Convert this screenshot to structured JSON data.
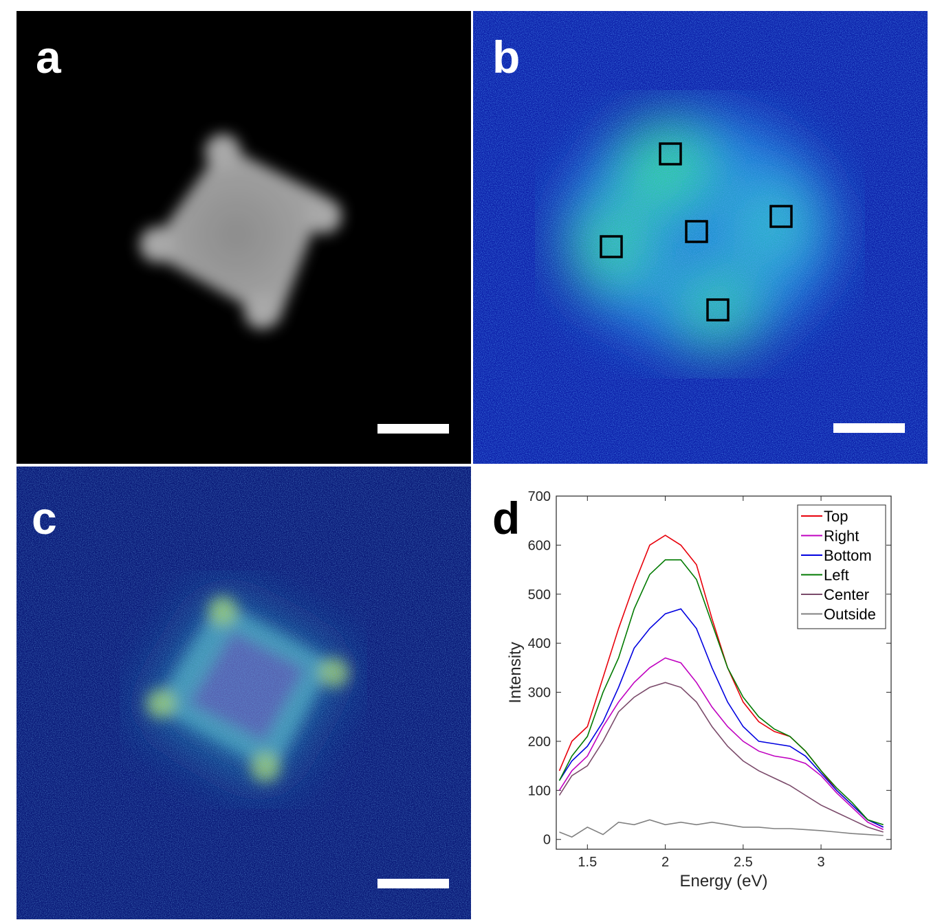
{
  "panels": {
    "a": {
      "label": "a"
    },
    "b": {
      "label": "b"
    },
    "c": {
      "label": "c"
    },
    "d": {
      "label": "d"
    }
  },
  "colors": {
    "top": "#e8000b",
    "right": "#c000c0",
    "bottom": "#0000e0",
    "left": "#007a00",
    "center": "#7a4a6a",
    "outside": "#808080"
  },
  "chart_data": {
    "type": "line",
    "title": "",
    "xlabel": "Energy (eV)",
    "ylabel": "Intensity",
    "xlim": [
      1.3,
      3.45
    ],
    "ylim": [
      -20,
      700
    ],
    "xticks": [
      1.5,
      2,
      2.5,
      3
    ],
    "yticks": [
      0,
      100,
      200,
      300,
      400,
      500,
      600,
      700
    ],
    "grid": false,
    "legend": "top-right",
    "series": [
      {
        "name": "Top",
        "color": "#e8000b",
        "x": [
          1.32,
          1.4,
          1.5,
          1.6,
          1.7,
          1.8,
          1.9,
          2.0,
          2.1,
          2.2,
          2.3,
          2.4,
          2.5,
          2.6,
          2.7,
          2.8,
          2.9,
          3.0,
          3.1,
          3.2,
          3.3,
          3.4
        ],
        "values": [
          140,
          200,
          230,
          330,
          430,
          520,
          600,
          620,
          600,
          560,
          450,
          350,
          280,
          240,
          220,
          210,
          180,
          140,
          100,
          70,
          40,
          25
        ]
      },
      {
        "name": "Right",
        "color": "#c000c0",
        "x": [
          1.32,
          1.4,
          1.5,
          1.6,
          1.7,
          1.8,
          1.9,
          2.0,
          2.1,
          2.2,
          2.3,
          2.4,
          2.5,
          2.6,
          2.7,
          2.8,
          2.9,
          3.0,
          3.1,
          3.2,
          3.3,
          3.4
        ],
        "values": [
          100,
          140,
          170,
          230,
          280,
          320,
          350,
          370,
          360,
          320,
          270,
          230,
          200,
          180,
          170,
          165,
          155,
          130,
          95,
          65,
          35,
          20
        ]
      },
      {
        "name": "Bottom",
        "color": "#0000e0",
        "x": [
          1.32,
          1.4,
          1.5,
          1.6,
          1.7,
          1.8,
          1.9,
          2.0,
          2.1,
          2.2,
          2.3,
          2.4,
          2.5,
          2.6,
          2.7,
          2.8,
          2.9,
          3.0,
          3.1,
          3.2,
          3.3,
          3.4
        ],
        "values": [
          120,
          160,
          190,
          240,
          310,
          390,
          430,
          460,
          470,
          430,
          350,
          280,
          230,
          200,
          195,
          190,
          170,
          135,
          100,
          70,
          40,
          25
        ]
      },
      {
        "name": "Left",
        "color": "#007a00",
        "x": [
          1.32,
          1.4,
          1.5,
          1.6,
          1.7,
          1.8,
          1.9,
          2.0,
          2.1,
          2.2,
          2.3,
          2.4,
          2.5,
          2.6,
          2.7,
          2.8,
          2.9,
          3.0,
          3.1,
          3.2,
          3.3,
          3.4
        ],
        "values": [
          120,
          170,
          210,
          300,
          370,
          470,
          540,
          570,
          570,
          530,
          440,
          350,
          290,
          250,
          225,
          210,
          180,
          140,
          105,
          75,
          40,
          30
        ]
      },
      {
        "name": "Center",
        "color": "#7a4a6a",
        "x": [
          1.32,
          1.4,
          1.5,
          1.6,
          1.7,
          1.8,
          1.9,
          2.0,
          2.1,
          2.2,
          2.3,
          2.4,
          2.5,
          2.6,
          2.7,
          2.8,
          2.9,
          3.0,
          3.1,
          3.2,
          3.3,
          3.4
        ],
        "values": [
          90,
          130,
          150,
          200,
          260,
          290,
          310,
          320,
          310,
          280,
          230,
          190,
          160,
          140,
          125,
          110,
          90,
          70,
          55,
          40,
          25,
          15
        ]
      },
      {
        "name": "Outside",
        "color": "#808080",
        "x": [
          1.32,
          1.4,
          1.5,
          1.6,
          1.7,
          1.8,
          1.9,
          2.0,
          2.1,
          2.2,
          2.3,
          2.4,
          2.5,
          2.6,
          2.7,
          2.8,
          2.9,
          3.0,
          3.1,
          3.2,
          3.3,
          3.4
        ],
        "values": [
          15,
          5,
          25,
          10,
          35,
          30,
          40,
          30,
          35,
          30,
          35,
          30,
          25,
          25,
          22,
          22,
          20,
          18,
          15,
          12,
          10,
          8
        ]
      }
    ]
  }
}
